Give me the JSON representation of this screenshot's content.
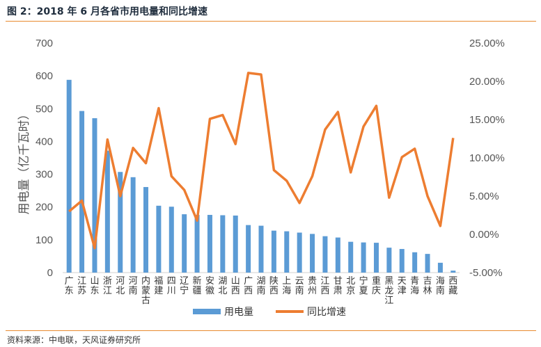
{
  "title": "图 2：2018 年 6 月各省市用电量和同比增速",
  "source": "资料来源：中电联，天风证券研究所",
  "chart_data": {
    "type": "bar",
    "categories": [
      "广东",
      "江苏",
      "山东",
      "浙江",
      "河北",
      "河南",
      "内蒙古",
      "福建",
      "四川",
      "辽宁",
      "新疆",
      "安徽",
      "湖北",
      "山西",
      "广西",
      "湖南",
      "陕西",
      "上海",
      "云南",
      "贵州",
      "江西",
      "甘肃",
      "北京",
      "宁夏",
      "重庆",
      "黑龙江",
      "天津",
      "青海",
      "吉林",
      "海南",
      "西藏"
    ],
    "series": [
      {
        "name": "用电量",
        "kind": "bar",
        "axis": "left",
        "color": "#5b9bd5",
        "values": [
          588,
          493,
          471,
          372,
          307,
          291,
          261,
          204,
          201,
          178,
          176,
          176,
          175,
          174,
          145,
          143,
          128,
          126,
          122,
          118,
          111,
          107,
          94,
          92,
          91,
          76,
          72,
          62,
          57,
          30,
          6
        ]
      },
      {
        "name": "同比增速",
        "kind": "line",
        "axis": "right",
        "color": "#ed7d31",
        "values": [
          3.0,
          4.4,
          -1.8,
          12.4,
          5.0,
          11.3,
          9.3,
          16.5,
          7.6,
          5.8,
          1.8,
          15.1,
          15.6,
          11.8,
          21.1,
          20.9,
          8.4,
          7.0,
          4.1,
          7.6,
          13.7,
          16.0,
          8.1,
          14.1,
          16.8,
          4.8,
          10.1,
          11.2,
          5.0,
          1.1,
          12.6
        ]
      }
    ],
    "ylabel": "用电量（亿千瓦时）",
    "ylim": [
      0,
      700
    ],
    "y_ticks": [
      "0",
      "100",
      "200",
      "300",
      "400",
      "500",
      "600",
      "700"
    ],
    "y2lim": [
      -5,
      25
    ],
    "y2_ticks": [
      "-5.00%",
      "0.00%",
      "5.00%",
      "10.00%",
      "15.00%",
      "20.00%",
      "25.00%"
    ],
    "legend_position": "bottom"
  }
}
